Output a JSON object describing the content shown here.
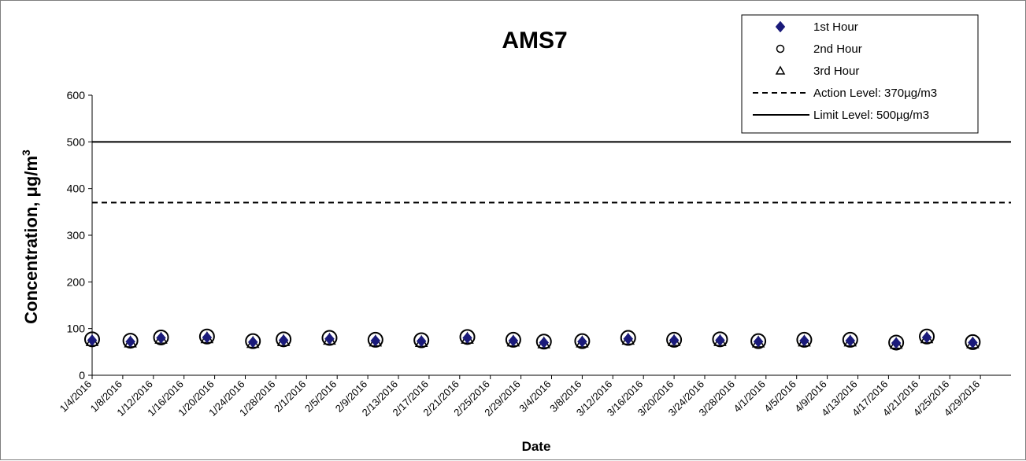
{
  "chart_data": {
    "type": "scatter",
    "title": "AMS7",
    "xlabel": "Date",
    "ylabel": "Concentration,  μg/m",
    "ylabel_superscript": "3",
    "ylim": [
      0,
      600
    ],
    "yticks": [
      "0",
      "100",
      "200",
      "300",
      "400",
      "500",
      "600"
    ],
    "xlim": [
      "1/4/2016",
      "5/3/2016"
    ],
    "xticks": [
      "1/4/2016",
      "1/8/2016",
      "1/12/2016",
      "1/16/2016",
      "1/20/2016",
      "1/24/2016",
      "1/28/2016",
      "2/1/2016",
      "2/5/2016",
      "2/9/2016",
      "2/13/2016",
      "2/17/2016",
      "2/21/2016",
      "2/25/2016",
      "2/29/2016",
      "3/4/2016",
      "3/8/2016",
      "3/12/2016",
      "3/16/2016",
      "3/20/2016",
      "3/24/2016",
      "3/28/2016",
      "4/1/2016",
      "4/5/2016",
      "4/9/2016",
      "4/13/2016",
      "4/17/2016",
      "4/21/2016",
      "4/25/2016",
      "4/29/2016"
    ],
    "grid": false,
    "legend_position": "top-right",
    "x": [
      "1/4/2016",
      "1/9/2016",
      "1/13/2016",
      "1/19/2016",
      "1/25/2016",
      "1/29/2016",
      "2/4/2016",
      "2/10/2016",
      "2/16/2016",
      "2/22/2016",
      "2/28/2016",
      "3/3/2016",
      "3/8/2016",
      "3/14/2016",
      "3/20/2016",
      "3/26/2016",
      "3/31/2016",
      "4/6/2016",
      "4/12/2016",
      "4/18/2016",
      "4/22/2016",
      "4/28/2016"
    ],
    "series": [
      {
        "name": "1st Hour",
        "marker": "diamond",
        "color": "#1a1a7a",
        "values": [
          75,
          72,
          80,
          81,
          71,
          75,
          78,
          74,
          73,
          80,
          74,
          70,
          72,
          78,
          75,
          75,
          72,
          74,
          74,
          69,
          81,
          70
        ]
      },
      {
        "name": "2nd Hour",
        "marker": "circle",
        "color": "#000000",
        "values": [
          77,
          74,
          81,
          83,
          73,
          77,
          80,
          76,
          75,
          82,
          76,
          72,
          73,
          80,
          76,
          77,
          73,
          76,
          76,
          70,
          83,
          71
        ]
      },
      {
        "name": "3rd Hour",
        "marker": "triangle",
        "color": "#000000",
        "values": [
          74,
          71,
          79,
          80,
          70,
          74,
          77,
          73,
          72,
          79,
          73,
          69,
          71,
          77,
          74,
          74,
          71,
          73,
          73,
          68,
          80,
          69
        ]
      },
      {
        "name": "Action Level: 370µg/m3",
        "line": "dashed",
        "color": "#000000",
        "value": 370
      },
      {
        "name": "Limit Level: 500µg/m3",
        "line": "solid",
        "color": "#000000",
        "value": 500
      }
    ]
  }
}
